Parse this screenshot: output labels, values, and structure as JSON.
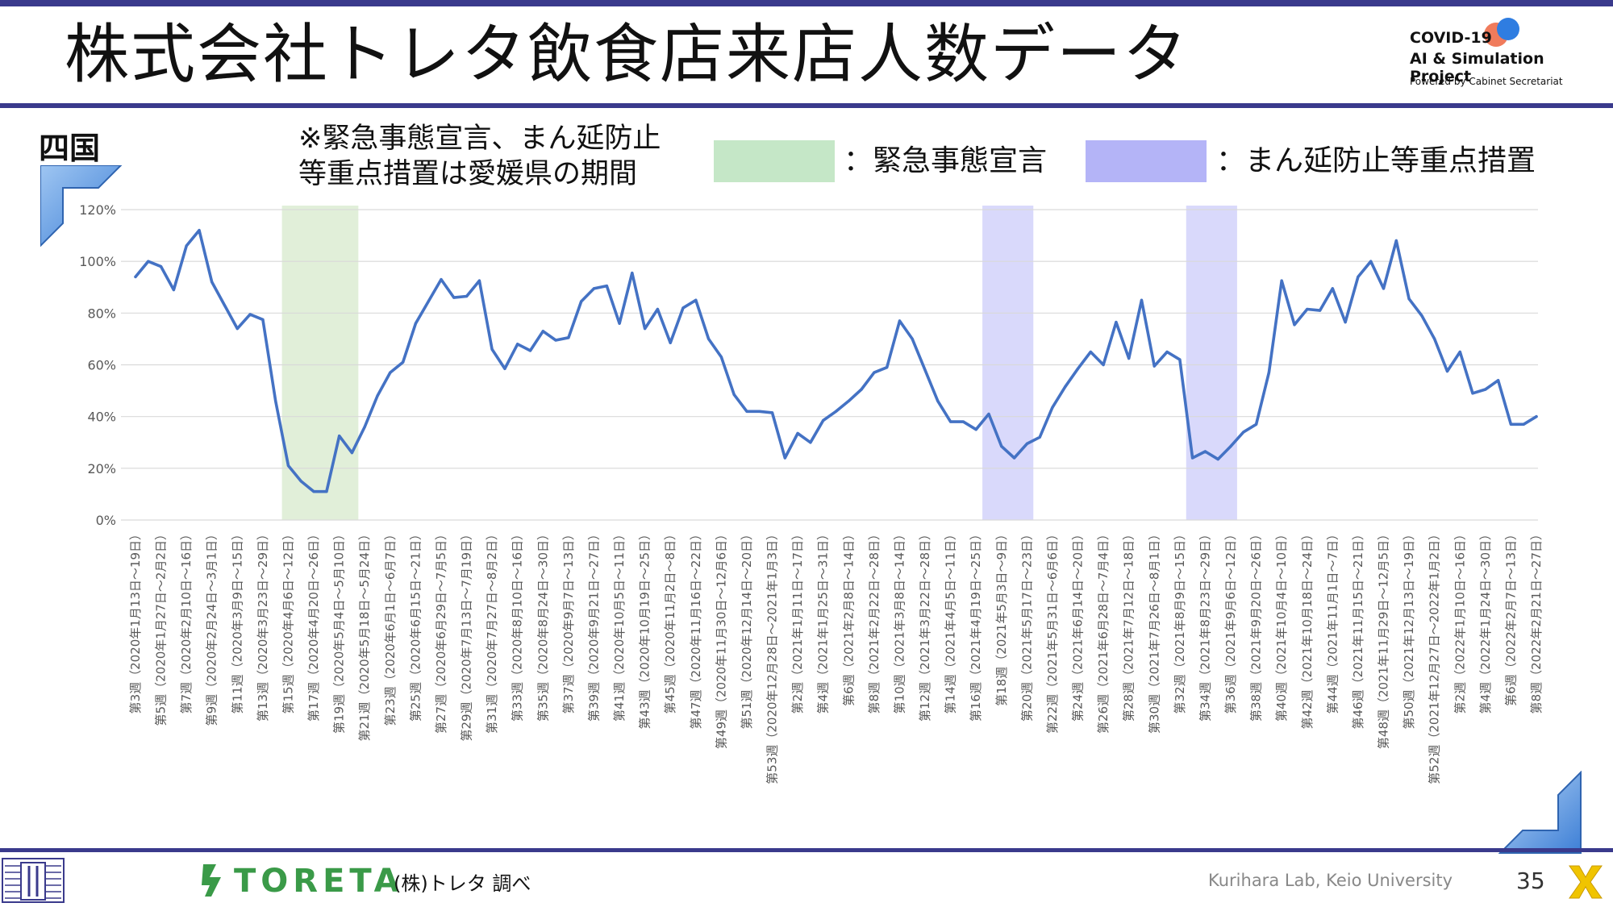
{
  "header": {
    "title": "株式会社トレタ飲食店来店人数データ",
    "logo": {
      "line1": "COVID-19",
      "line2": "AI & Simulation Project",
      "line3": "Powered by Cabinet Secretariat"
    }
  },
  "region": "四国",
  "note": [
    "※緊急事態宣言、まん延防止",
    "等重点措置は愛媛県の期間"
  ],
  "legend": [
    {
      "label": "：緊急事態宣言",
      "color": "#c5e7c7"
    },
    {
      "label": "：まん延防止等重点措置",
      "color": "#b4b4f7"
    }
  ],
  "footer": {
    "brand": "TORETA",
    "source": "(株)トレタ 調べ",
    "lab": "Kurihara Lab, Keio University",
    "page": "35"
  },
  "colors": {
    "line": "#4472c4",
    "emergency_band": "#e1efd9",
    "semi_band": "#d9d9fb",
    "accent": "#3a3a8c"
  },
  "chart_data": {
    "type": "line",
    "title": "",
    "xlabel": "",
    "ylabel": "",
    "ylim": [
      0,
      120
    ],
    "yticks": [
      0,
      20,
      40,
      60,
      80,
      100,
      120
    ],
    "ytick_format": "percent",
    "grid": true,
    "x_tick_labels": [
      "第3週（2020年1月13日～19日）",
      "第5週（2020年1月27日～2月2日）",
      "第7週（2020年2月10日～16日）",
      "第9週（2020年2月24日～3月1日）",
      "第11週（2020年3月9日～15日）",
      "第13週（2020年3月23日～29日）",
      "第15週（2020年4月6日～12日）",
      "第17週（2020年4月20日～26日）",
      "第19週（2020年5月4日～5月10日）",
      "第21週（2020年5月18日～5月24日）",
      "第23週（2020年6月1日～6月7日）",
      "第25週（2020年6月15日～21日）",
      "第27週（2020年6月29日～7月5日）",
      "第29週（2020年7月13日～7月19日）",
      "第31週（2020年7月27日～8月2日）",
      "第33週（2020年8月10日～16日）",
      "第35週（2020年8月24日～30日）",
      "第37週（2020年9月7日～13日）",
      "第39週（2020年9月21日～27日）",
      "第41週（2020年10月5日～11日）",
      "第43週（2020年10月19日～25日）",
      "第45週（2020年11月2日～8日）",
      "第47週（2020年11月16日～22日）",
      "第49週（2020年11月30日～12月6日）",
      "第51週（2020年12月14日～20日）",
      "第53週（2020年12月28日～2021年1月3日）",
      "第2週（2021年1月11日～17日）",
      "第4週（2021年1月25日～31日）",
      "第6週（2021年2月8日～14日）",
      "第8週（2021年2月22日～28日）",
      "第10週（2021年3月8日～14日）",
      "第12週（2021年3月22日～28日）",
      "第14週（2021年4月5日～11日）",
      "第16週（2021年4月19日～25日）",
      "第18週（2021年5月3日～9日）",
      "第20週（2021年5月17日～23日）",
      "第22週（2021年5月31日～6月6日）",
      "第24週（2021年6月14日～20日）",
      "第26週（2021年6月28日～7月4日）",
      "第28週（2021年7月12日～18日）",
      "第30週（2021年7月26日～8月1日）",
      "第32週（2021年8月9日～15日）",
      "第34週（2021年8月23日～29日）",
      "第36週（2021年9月6日～12日）",
      "第38週（2021年9月20日～26日）",
      "第40週（2021年10月4日～10日）",
      "第42週（2021年10月18日～24日）",
      "第44週（2021年11月1日～7日）",
      "第46週（2021年11月15日～21日）",
      "第48週（2021年11月29日～12月5日）",
      "第50週（2021年12月13日～19日）",
      "第52週（2021年12月27日～2022年1月2日）",
      "第2週（2022年1月10日～16日）",
      "第4週（2022年1月24日～30日）",
      "第6週（2022年2月7日～13日）",
      "第8週（2022年2月21日～27日）"
    ],
    "series": [
      {
        "values": [
          94,
          100,
          98,
          89,
          106,
          112,
          92,
          83,
          74,
          79.5,
          77.5,
          46,
          21,
          15,
          11,
          11,
          32.5,
          26,
          36,
          48,
          57,
          61,
          76,
          84.5,
          93,
          86,
          86.5,
          92.5,
          66,
          58.5,
          68,
          65.5,
          73,
          69.5,
          70.5,
          84.5,
          89.5,
          90.5,
          76,
          95.5,
          74,
          81.5,
          68.5,
          82,
          85,
          70,
          63,
          48.5,
          42,
          42,
          41.5,
          24,
          33.5,
          30,
          38.5,
          42,
          46,
          50.5,
          57,
          59,
          77,
          70,
          58,
          46,
          38,
          38,
          35,
          41,
          28.5,
          24,
          29.5,
          32,
          43.5,
          51.5,
          58.5,
          65,
          60,
          76.5,
          62.5,
          85,
          59.5,
          65,
          62,
          24,
          26.5,
          23.5,
          28.5,
          34,
          37,
          57,
          92.5,
          75.5,
          81.5,
          81,
          89.5,
          76.5,
          94,
          100,
          89.5,
          108,
          85.5,
          79,
          70,
          57.5,
          65,
          49,
          50.5,
          54,
          37,
          37,
          40
        ]
      }
    ],
    "bands": [
      {
        "type": "緊急事態宣言",
        "from_index": 12,
        "to_index": 17
      },
      {
        "type": "まん延防止等重点措置",
        "from_index": 67,
        "to_index": 70
      },
      {
        "type": "まん延防止等重点措置",
        "from_index": 83,
        "to_index": 86
      }
    ]
  }
}
